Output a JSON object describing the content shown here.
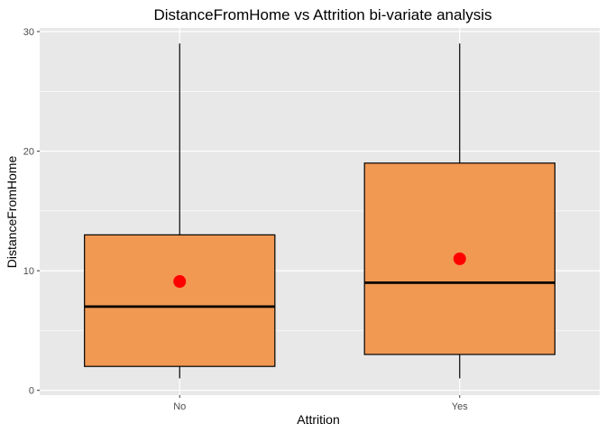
{
  "chart_data": {
    "type": "boxplot",
    "title": "DistanceFromHome vs Attrition bi-variate analysis",
    "xlabel": "Attrition",
    "ylabel": "DistanceFromHome",
    "categories": [
      "No",
      "Yes"
    ],
    "ylim": [
      -0.4,
      30.3
    ],
    "yticks": [
      0,
      10,
      20,
      30
    ],
    "grid": true,
    "boxes": [
      {
        "category": "No",
        "whisker_low": 1,
        "q1": 2,
        "median": 7,
        "q3": 13,
        "whisker_high": 29,
        "mean": 9.1
      },
      {
        "category": "Yes",
        "whisker_low": 1,
        "q1": 3,
        "median": 9,
        "q3": 19,
        "whisker_high": 29,
        "mean": 11
      }
    ],
    "colors": {
      "panel": "#e8e8e8",
      "grid": "#ffffff",
      "box_fill": "#f19853",
      "box_stroke": "#000000",
      "mean_point": "#ff0000"
    }
  }
}
